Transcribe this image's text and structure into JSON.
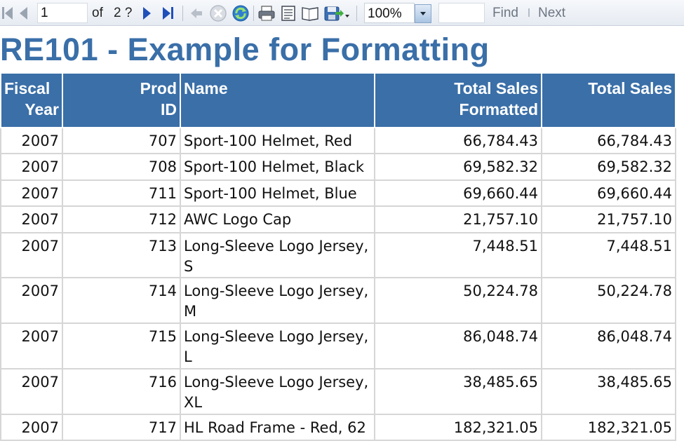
{
  "toolbar": {
    "page_number": "1",
    "page_of": "of",
    "page_total": "2 ?",
    "zoom": "100%",
    "find_label": "Find",
    "next_label": "Next"
  },
  "report": {
    "title": "RE101 - Example for Formatting",
    "header_color": "#3a6fa8",
    "columns": [
      {
        "line1": "Fiscal",
        "line2": "Year"
      },
      {
        "line1": "Prod",
        "line2": "ID"
      },
      {
        "line1": "Name",
        "line2": ""
      },
      {
        "line1": "Total Sales",
        "line2": "Formatted"
      },
      {
        "line1": "Total Sales",
        "line2": ""
      }
    ],
    "rows": [
      {
        "year": "2007",
        "id": "707",
        "name": "Sport-100 Helmet, Red",
        "formatted": "66,784.43",
        "total": "66,784.43"
      },
      {
        "year": "2007",
        "id": "708",
        "name": "Sport-100 Helmet, Black",
        "formatted": "69,582.32",
        "total": "69,582.32"
      },
      {
        "year": "2007",
        "id": "711",
        "name": "Sport-100 Helmet, Blue",
        "formatted": "69,660.44",
        "total": "69,660.44"
      },
      {
        "year": "2007",
        "id": "712",
        "name": "AWC Logo Cap",
        "formatted": "21,757.10",
        "total": "21,757.10"
      },
      {
        "year": "2007",
        "id": "713",
        "name": "Long-Sleeve Logo Jersey, S",
        "formatted": "7,448.51",
        "total": "7,448.51"
      },
      {
        "year": "2007",
        "id": "714",
        "name": "Long-Sleeve Logo Jersey, M",
        "formatted": "50,224.78",
        "total": "50,224.78"
      },
      {
        "year": "2007",
        "id": "715",
        "name": "Long-Sleeve Logo Jersey, L",
        "formatted": "86,048.74",
        "total": "86,048.74"
      },
      {
        "year": "2007",
        "id": "716",
        "name": "Long-Sleeve Logo Jersey, XL",
        "formatted": "38,485.65",
        "total": "38,485.65"
      },
      {
        "year": "2007",
        "id": "717",
        "name": "HL Road Frame - Red, 62",
        "formatted": "182,321.05",
        "total": "182,321.05"
      }
    ]
  }
}
